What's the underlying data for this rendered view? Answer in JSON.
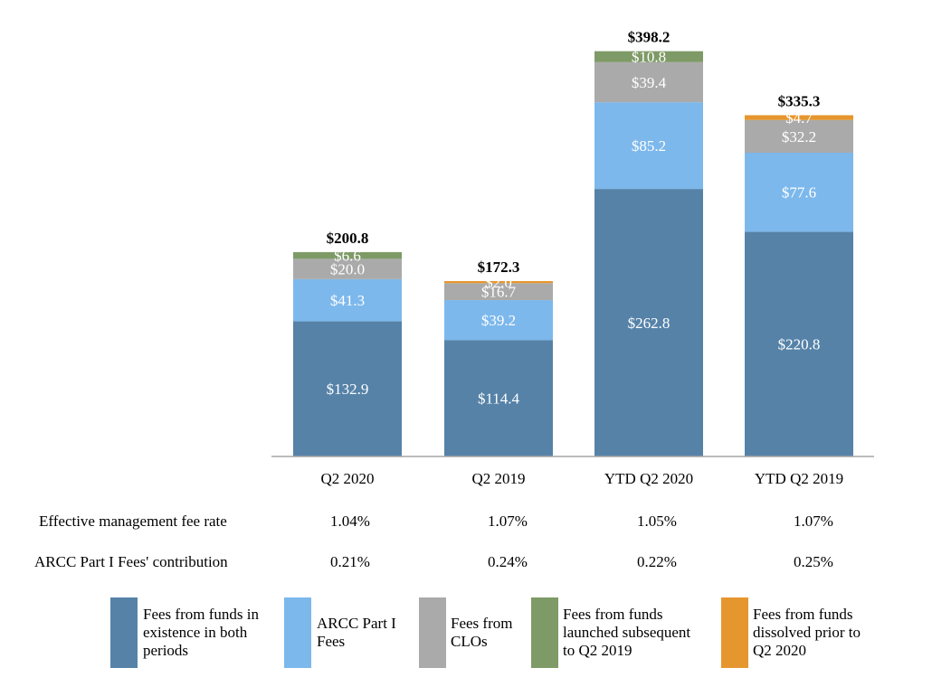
{
  "chart_data": {
    "type": "bar",
    "stacked": true,
    "categories": [
      "Q2 2020",
      "Q2 2019",
      "YTD Q2 2020",
      "YTD Q2 2019"
    ],
    "series": [
      {
        "name": "Fees from funds in existence in both periods",
        "color": "#5682A8",
        "values": [
          132.9,
          114.4,
          262.8,
          220.8
        ],
        "labels": [
          "$132.9",
          "$114.4",
          "$262.8",
          "$220.8"
        ]
      },
      {
        "name": "ARCC Part I Fees",
        "color": "#7CB8EC",
        "values": [
          41.3,
          39.2,
          85.2,
          77.6
        ],
        "labels": [
          "$41.3",
          "$39.2",
          "$85.2",
          "$77.6"
        ]
      },
      {
        "name": "Fees from CLOs",
        "color": "#AAAAAA",
        "values": [
          20.0,
          16.7,
          39.4,
          32.2
        ],
        "labels": [
          "$20.0",
          "$16.7",
          "$39.4",
          "$32.2"
        ]
      },
      {
        "name": "Fees from funds launched subsequent to Q2 2019",
        "color": "#7E9A66",
        "values": [
          6.6,
          null,
          10.8,
          null
        ],
        "labels": [
          "$6.6",
          null,
          "$10.8",
          null
        ]
      },
      {
        "name": "Fees from funds dissolved prior to Q2 2020",
        "color": "#E6962E",
        "values": [
          null,
          2.0,
          null,
          4.7
        ],
        "labels": [
          null,
          "$2.0",
          null,
          "$4.7"
        ]
      }
    ],
    "totals": [
      200.8,
      172.3,
      398.2,
      335.3
    ],
    "total_labels": [
      "$200.8",
      "$172.3",
      "$398.2",
      "$335.3"
    ],
    "ylim": [
      0,
      420
    ],
    "title": "",
    "xlabel": "",
    "ylabel": "",
    "grid": false,
    "legend": "bottom"
  },
  "table": {
    "rows": [
      {
        "label": "Effective management fee rate",
        "values": [
          "1.04%",
          "1.07%",
          "1.05%",
          "1.07%"
        ]
      },
      {
        "label": "ARCC Part I Fees' contribution",
        "values": [
          "0.21%",
          "0.24%",
          "0.22%",
          "0.25%"
        ]
      }
    ]
  },
  "legend": [
    {
      "line1": "Fees from funds in",
      "line2": "existence in both",
      "line3": "periods"
    },
    {
      "line1": "ARCC Part I",
      "line2": "Fees",
      "line3": ""
    },
    {
      "line1": "Fees from",
      "line2": "CLOs",
      "line3": ""
    },
    {
      "line1": "Fees from funds",
      "line2": "launched subsequent",
      "line3": "to Q2 2019"
    },
    {
      "line1": "Fees from funds",
      "line2": "dissolved prior to",
      "line3": "Q2 2020"
    }
  ]
}
